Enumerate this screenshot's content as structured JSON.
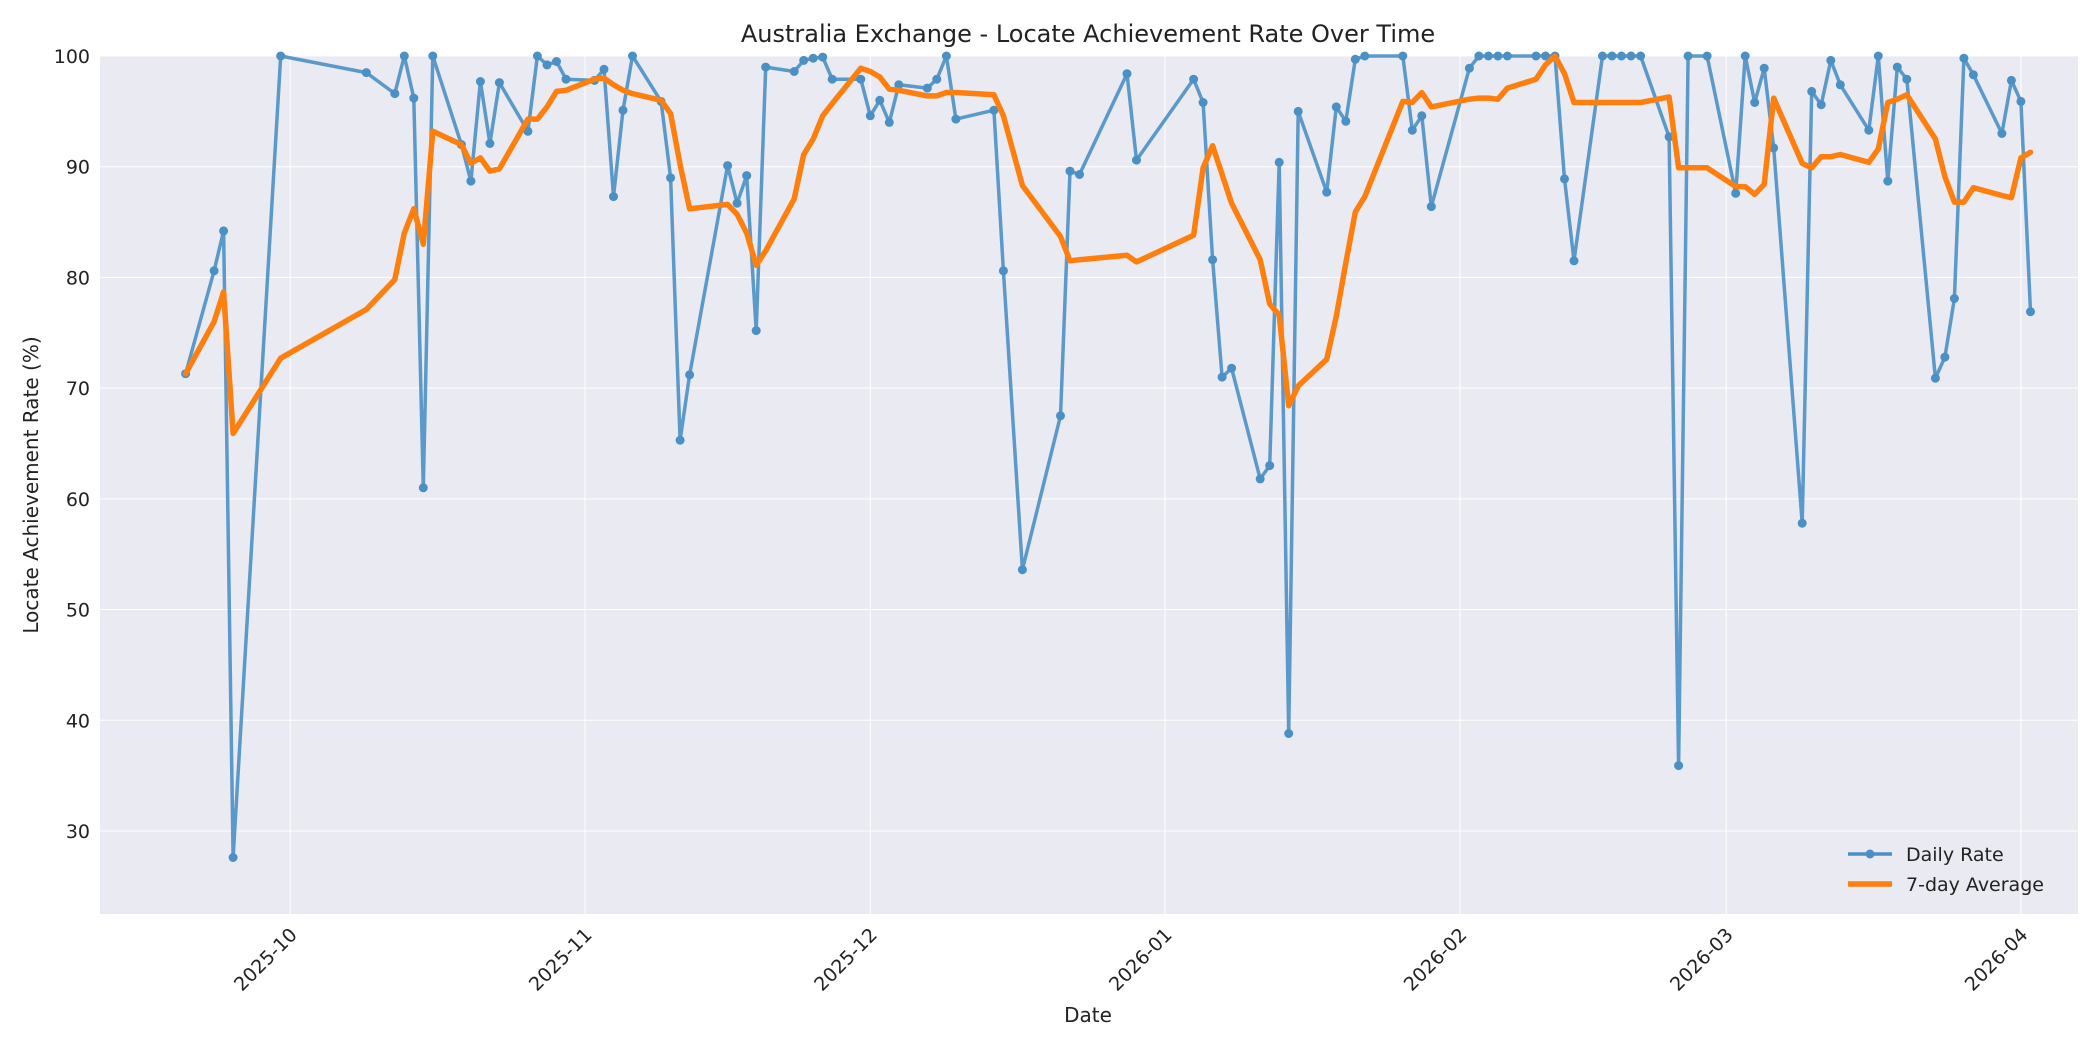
{
  "chart_data": {
    "type": "line",
    "title": "Australia Exchange - Locate Achievement Rate Over Time",
    "xlabel": "Date",
    "ylabel": "Locate Achievement Rate (%)",
    "ylim": [
      22.5,
      100
    ],
    "xlim": [
      "2025-09-11",
      "2026-04-07"
    ],
    "y_ticks": [
      30,
      40,
      50,
      60,
      70,
      80,
      90,
      100
    ],
    "x_ticks": [
      "2025-10-01",
      "2025-11-01",
      "2025-12-01",
      "2026-01-01",
      "2026-02-01",
      "2026-03-01",
      "2026-04-01"
    ],
    "x_tick_labels": [
      "2025-10",
      "2025-11",
      "2025-12",
      "2026-01",
      "2026-02",
      "2026-03",
      "2026-04"
    ],
    "grid": true,
    "legend_position": "bottom-right",
    "colors": {
      "daily": "#4a90c4",
      "average": "#ff7f0e",
      "plot_bg": "#eaeaf2"
    },
    "series": [
      {
        "name": "Daily Rate",
        "style": "line-markers",
        "points": [
          [
            "2025-09-20",
            71.3
          ],
          [
            "2025-09-23",
            80.6
          ],
          [
            "2025-09-24",
            84.2
          ],
          [
            "2025-09-25",
            27.6
          ],
          [
            "2025-09-30",
            100
          ],
          [
            "2025-10-09",
            98.5
          ],
          [
            "2025-10-12",
            96.6
          ],
          [
            "2025-10-13",
            100
          ],
          [
            "2025-10-14",
            96.2
          ],
          [
            "2025-10-15",
            61.0
          ],
          [
            "2025-10-16",
            100
          ],
          [
            "2025-10-19",
            92.0
          ],
          [
            "2025-10-20",
            88.7
          ],
          [
            "2025-10-21",
            97.7
          ],
          [
            "2025-10-22",
            92.1
          ],
          [
            "2025-10-23",
            97.6
          ],
          [
            "2025-10-26",
            93.2
          ],
          [
            "2025-10-27",
            100
          ],
          [
            "2025-10-28",
            99.2
          ],
          [
            "2025-10-29",
            99.5
          ],
          [
            "2025-10-30",
            97.9
          ],
          [
            "2025-11-02",
            97.8
          ],
          [
            "2025-11-03",
            98.8
          ],
          [
            "2025-11-04",
            87.3
          ],
          [
            "2025-11-05",
            95.1
          ],
          [
            "2025-11-06",
            100
          ],
          [
            "2025-11-09",
            95.9
          ],
          [
            "2025-11-10",
            89.0
          ],
          [
            "2025-11-11",
            65.3
          ],
          [
            "2025-11-12",
            71.2
          ],
          [
            "2025-11-16",
            90.1
          ],
          [
            "2025-11-17",
            86.7
          ],
          [
            "2025-11-18",
            89.2
          ],
          [
            "2025-11-19",
            75.2
          ],
          [
            "2025-11-20",
            99.0
          ],
          [
            "2025-11-23",
            98.6
          ],
          [
            "2025-11-24",
            99.6
          ],
          [
            "2025-11-25",
            99.8
          ],
          [
            "2025-11-26",
            99.9
          ],
          [
            "2025-11-27",
            97.9
          ],
          [
            "2025-11-30",
            97.9
          ],
          [
            "2025-12-01",
            94.6
          ],
          [
            "2025-12-02",
            96.0
          ],
          [
            "2025-12-03",
            94.0
          ],
          [
            "2025-12-04",
            97.4
          ],
          [
            "2025-12-07",
            97.1
          ],
          [
            "2025-12-08",
            97.9
          ],
          [
            "2025-12-09",
            100
          ],
          [
            "2025-12-10",
            94.3
          ],
          [
            "2025-12-14",
            95.1
          ],
          [
            "2025-12-15",
            80.6
          ],
          [
            "2025-12-17",
            53.6
          ],
          [
            "2025-12-21",
            67.5
          ],
          [
            "2025-12-22",
            89.6
          ],
          [
            "2025-12-23",
            89.3
          ],
          [
            "2025-12-28",
            98.4
          ],
          [
            "2025-12-29",
            90.6
          ],
          [
            "2026-01-04",
            97.9
          ],
          [
            "2026-01-05",
            95.8
          ],
          [
            "2026-01-06",
            81.6
          ],
          [
            "2026-01-07",
            71.0
          ],
          [
            "2026-01-08",
            71.8
          ],
          [
            "2026-01-11",
            61.8
          ],
          [
            "2026-01-12",
            63.0
          ],
          [
            "2026-01-13",
            90.4
          ],
          [
            "2026-01-14",
            38.8
          ],
          [
            "2026-01-15",
            95.0
          ],
          [
            "2026-01-18",
            87.7
          ],
          [
            "2026-01-19",
            95.4
          ],
          [
            "2026-01-20",
            94.1
          ],
          [
            "2026-01-21",
            99.7
          ],
          [
            "2026-01-22",
            100
          ],
          [
            "2026-01-26",
            100
          ],
          [
            "2026-01-27",
            93.3
          ],
          [
            "2026-01-28",
            94.6
          ],
          [
            "2026-01-29",
            86.4
          ],
          [
            "2026-02-02",
            98.9
          ],
          [
            "2026-02-03",
            100
          ],
          [
            "2026-02-04",
            100
          ],
          [
            "2026-02-05",
            100
          ],
          [
            "2026-02-06",
            100
          ],
          [
            "2026-02-09",
            100
          ],
          [
            "2026-02-10",
            100
          ],
          [
            "2026-02-11",
            100
          ],
          [
            "2026-02-12",
            88.9
          ],
          [
            "2026-02-13",
            81.5
          ],
          [
            "2026-02-16",
            100
          ],
          [
            "2026-02-17",
            100
          ],
          [
            "2026-02-18",
            100
          ],
          [
            "2026-02-19",
            100
          ],
          [
            "2026-02-20",
            100
          ],
          [
            "2026-02-23",
            92.7
          ],
          [
            "2026-02-24",
            35.9
          ],
          [
            "2026-02-25",
            100
          ],
          [
            "2026-02-27",
            100
          ],
          [
            "2026-03-02",
            87.6
          ],
          [
            "2026-03-03",
            100
          ],
          [
            "2026-03-04",
            95.8
          ],
          [
            "2026-03-05",
            98.9
          ],
          [
            "2026-03-06",
            91.7
          ],
          [
            "2026-03-09",
            57.8
          ],
          [
            "2026-03-10",
            96.8
          ],
          [
            "2026-03-11",
            95.6
          ],
          [
            "2026-03-12",
            99.6
          ],
          [
            "2026-03-13",
            97.4
          ],
          [
            "2026-03-16",
            93.3
          ],
          [
            "2026-03-17",
            100
          ],
          [
            "2026-03-18",
            88.7
          ],
          [
            "2026-03-19",
            99.0
          ],
          [
            "2026-03-20",
            97.9
          ],
          [
            "2026-03-23",
            70.9
          ],
          [
            "2026-03-24",
            72.8
          ],
          [
            "2026-03-25",
            78.1
          ],
          [
            "2026-03-26",
            99.8
          ],
          [
            "2026-03-27",
            98.3
          ],
          [
            "2026-03-30",
            93.0
          ],
          [
            "2026-03-31",
            97.8
          ],
          [
            "2026-04-01",
            95.9
          ],
          [
            "2026-04-02",
            76.9
          ]
        ]
      },
      {
        "name": "7-day Average",
        "style": "line",
        "points": [
          [
            "2025-09-20",
            71.3
          ],
          [
            "2025-09-23",
            76.0
          ],
          [
            "2025-09-24",
            78.7
          ],
          [
            "2025-09-25",
            65.9
          ],
          [
            "2025-09-30",
            72.7
          ],
          [
            "2025-10-09",
            77.1
          ],
          [
            "2025-10-12",
            79.8
          ],
          [
            "2025-10-13",
            84.0
          ],
          [
            "2025-10-14",
            86.2
          ],
          [
            "2025-10-15",
            83.0
          ],
          [
            "2025-10-16",
            93.2
          ],
          [
            "2025-10-19",
            92.0
          ],
          [
            "2025-10-20",
            90.3
          ],
          [
            "2025-10-21",
            90.8
          ],
          [
            "2025-10-22",
            89.6
          ],
          [
            "2025-10-23",
            89.8
          ],
          [
            "2025-10-26",
            94.3
          ],
          [
            "2025-10-27",
            94.3
          ],
          [
            "2025-10-28",
            95.4
          ],
          [
            "2025-10-29",
            96.8
          ],
          [
            "2025-10-30",
            96.9
          ],
          [
            "2025-11-02",
            97.9
          ],
          [
            "2025-11-03",
            98.0
          ],
          [
            "2025-11-04",
            97.4
          ],
          [
            "2025-11-05",
            96.9
          ],
          [
            "2025-11-06",
            96.6
          ],
          [
            "2025-11-09",
            96.0
          ],
          [
            "2025-11-10",
            94.8
          ],
          [
            "2025-11-11",
            90.2
          ],
          [
            "2025-11-12",
            86.2
          ],
          [
            "2025-11-16",
            86.6
          ],
          [
            "2025-11-17",
            85.7
          ],
          [
            "2025-11-18",
            84.0
          ],
          [
            "2025-11-19",
            81.1
          ],
          [
            "2025-11-20",
            82.4
          ],
          [
            "2025-11-23",
            87.1
          ],
          [
            "2025-11-24",
            91.1
          ],
          [
            "2025-11-25",
            92.5
          ],
          [
            "2025-11-26",
            94.6
          ],
          [
            "2025-11-27",
            95.7
          ],
          [
            "2025-11-30",
            98.9
          ],
          [
            "2025-12-01",
            98.6
          ],
          [
            "2025-12-02",
            98.1
          ],
          [
            "2025-12-03",
            97.0
          ],
          [
            "2025-12-04",
            96.9
          ],
          [
            "2025-12-07",
            96.4
          ],
          [
            "2025-12-08",
            96.4
          ],
          [
            "2025-12-09",
            96.7
          ],
          [
            "2025-12-10",
            96.7
          ],
          [
            "2025-12-14",
            96.5
          ],
          [
            "2025-12-15",
            94.6
          ],
          [
            "2025-12-17",
            88.3
          ],
          [
            "2025-12-21",
            83.7
          ],
          [
            "2025-12-22",
            81.5
          ],
          [
            "2025-12-23",
            81.6
          ],
          [
            "2025-12-28",
            82.0
          ],
          [
            "2025-12-29",
            81.4
          ],
          [
            "2026-01-04",
            83.8
          ],
          [
            "2026-01-05",
            89.9
          ],
          [
            "2026-01-06",
            91.9
          ],
          [
            "2026-01-07",
            89.3
          ],
          [
            "2026-01-08",
            86.7
          ],
          [
            "2026-01-11",
            81.6
          ],
          [
            "2026-01-12",
            77.6
          ],
          [
            "2026-01-13",
            76.6
          ],
          [
            "2026-01-14",
            68.4
          ],
          [
            "2026-01-15",
            70.2
          ],
          [
            "2026-01-18",
            72.6
          ],
          [
            "2026-01-19",
            76.5
          ],
          [
            "2026-01-20",
            81.3
          ],
          [
            "2026-01-21",
            85.9
          ],
          [
            "2026-01-22",
            87.3
          ],
          [
            "2026-01-26",
            95.9
          ],
          [
            "2026-01-27",
            95.8
          ],
          [
            "2026-01-28",
            96.7
          ],
          [
            "2026-01-29",
            95.4
          ],
          [
            "2026-02-02",
            96.1
          ],
          [
            "2026-02-03",
            96.2
          ],
          [
            "2026-02-04",
            96.2
          ],
          [
            "2026-02-05",
            96.1
          ],
          [
            "2026-02-06",
            97.1
          ],
          [
            "2026-02-09",
            97.9
          ],
          [
            "2026-02-10",
            99.2
          ],
          [
            "2026-02-11",
            100
          ],
          [
            "2026-02-12",
            98.4
          ],
          [
            "2026-02-13",
            95.8
          ],
          [
            "2026-02-16",
            95.8
          ],
          [
            "2026-02-17",
            95.8
          ],
          [
            "2026-02-18",
            95.8
          ],
          [
            "2026-02-19",
            95.8
          ],
          [
            "2026-02-20",
            95.8
          ],
          [
            "2026-02-23",
            96.3
          ],
          [
            "2026-02-24",
            89.9
          ],
          [
            "2026-02-25",
            89.9
          ],
          [
            "2026-02-27",
            89.9
          ],
          [
            "2026-03-02",
            88.2
          ],
          [
            "2026-03-03",
            88.2
          ],
          [
            "2026-03-04",
            87.5
          ],
          [
            "2026-03-05",
            88.4
          ],
          [
            "2026-03-06",
            96.2
          ],
          [
            "2026-03-09",
            90.3
          ],
          [
            "2026-03-10",
            89.9
          ],
          [
            "2026-03-11",
            90.9
          ],
          [
            "2026-03-12",
            90.9
          ],
          [
            "2026-03-13",
            91.1
          ],
          [
            "2026-03-16",
            90.4
          ],
          [
            "2026-03-17",
            91.6
          ],
          [
            "2026-03-18",
            95.8
          ],
          [
            "2026-03-19",
            96.1
          ],
          [
            "2026-03-20",
            96.5
          ],
          [
            "2026-03-23",
            92.5
          ],
          [
            "2026-03-24",
            89.1
          ],
          [
            "2026-03-25",
            86.8
          ],
          [
            "2026-03-26",
            86.8
          ],
          [
            "2026-03-27",
            88.1
          ],
          [
            "2026-03-30",
            87.4
          ],
          [
            "2026-03-31",
            87.2
          ],
          [
            "2026-04-01",
            90.8
          ],
          [
            "2026-04-02",
            91.3
          ]
        ]
      }
    ]
  }
}
